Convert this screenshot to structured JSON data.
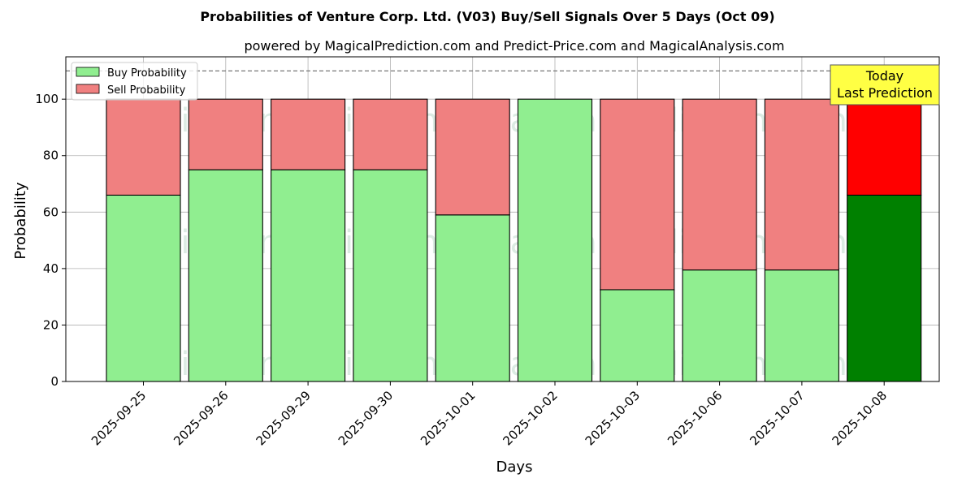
{
  "chart_data": {
    "type": "bar",
    "stacked": true,
    "title": "Probabilities of Venture Corp. Ltd. (V03) Buy/Sell Signals Over 5 Days (Oct 09)",
    "subtitle": "powered by MagicalPrediction.com and Predict-Price.com and MagicalAnalysis.com",
    "xlabel": "Days",
    "ylabel": "Probability",
    "ylim": [
      0,
      115
    ],
    "yticks": [
      0,
      20,
      40,
      60,
      80,
      100
    ],
    "grid": true,
    "legend_position": "top-left",
    "reference_line": 110,
    "categories": [
      "2025-09-25",
      "2025-09-26",
      "2025-09-29",
      "2025-09-30",
      "2025-10-01",
      "2025-10-02",
      "2025-10-03",
      "2025-10-06",
      "2025-10-07",
      "2025-10-08"
    ],
    "series": [
      {
        "name": "Buy Probability",
        "color": "#90ee90",
        "values": [
          66,
          75,
          75,
          75,
          59,
          100,
          32.5,
          39.5,
          39.5,
          66
        ]
      },
      {
        "name": "Sell Probability",
        "color": "#f08080",
        "values": [
          34,
          25,
          25,
          25,
          41,
          0,
          67.5,
          60.5,
          60.5,
          34
        ]
      }
    ],
    "highlight": {
      "index": 9,
      "buy_color": "#008000",
      "sell_color": "#ff0000"
    },
    "annotation": {
      "line1": "Today",
      "line2": "Last Prediction",
      "color": "#ffff44"
    },
    "watermarks": [
      "MagicalAnalysis.com",
      "MagicalPrediction.com"
    ]
  }
}
